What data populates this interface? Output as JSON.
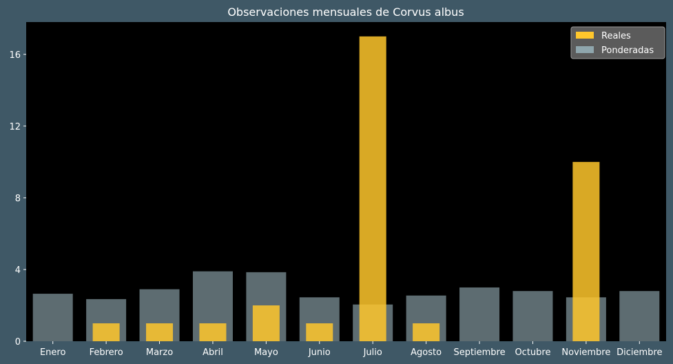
{
  "colors": {
    "figure_bg": "#3f5866",
    "plot_bg": "#000000",
    "reales": "#ffc72c",
    "ponderadas": "#8fa6ad",
    "legend_bg": "#5b5b5b",
    "text": "#ffffff"
  },
  "chart_data": {
    "type": "bar",
    "title": "Observaciones mensuales de Corvus albus",
    "xlabel": "",
    "ylabel": "",
    "categories": [
      "Enero",
      "Febrero",
      "Marzo",
      "Abril",
      "Mayo",
      "Junio",
      "Julio",
      "Agosto",
      "Septiembre",
      "Octubre",
      "Noviembre",
      "Diciembre"
    ],
    "series": [
      {
        "name": "Reales",
        "values": [
          0,
          1,
          1,
          1,
          2,
          1,
          17,
          1,
          0,
          0,
          10,
          0
        ]
      },
      {
        "name": "Ponderadas",
        "values": [
          2.65,
          2.35,
          2.9,
          3.9,
          3.85,
          2.45,
          2.05,
          2.55,
          3.0,
          2.8,
          2.45,
          2.8
        ]
      }
    ],
    "ylim": [
      0,
      17.8
    ],
    "yticks": [
      0,
      4,
      8,
      12,
      16
    ],
    "grid": false,
    "legend_position": "top-right"
  }
}
